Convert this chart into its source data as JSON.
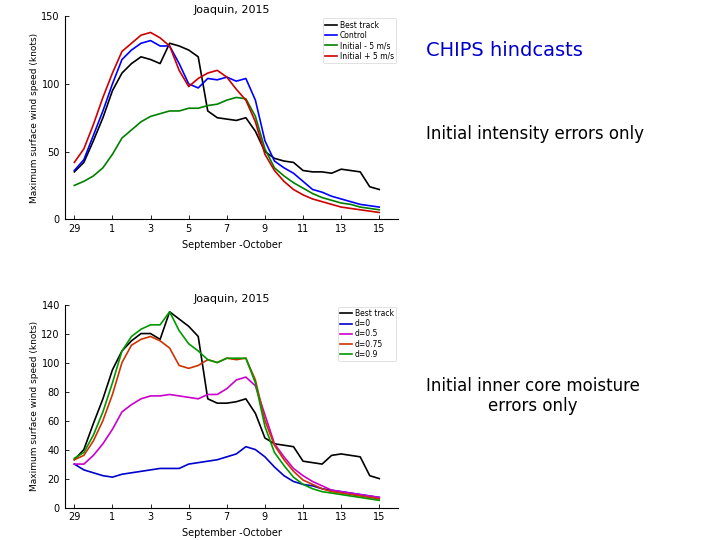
{
  "title1": "Joaquin, 2015",
  "title2": "Joaquin, 2015",
  "xlabel": "September -October",
  "ylabel": "Maximum surface wind speed (knots)",
  "xtick_positions": [
    0,
    2,
    4,
    6,
    8,
    10,
    12,
    14,
    16
  ],
  "xtick_labels": [
    "29",
    "1",
    "3",
    "5",
    "7",
    "9",
    "11",
    "13",
    "15"
  ],
  "xlim": [
    -0.5,
    17
  ],
  "ylim1": [
    0,
    150
  ],
  "ylim2": [
    0,
    140
  ],
  "yticks1": [
    0,
    50,
    100,
    150
  ],
  "yticks2": [
    0,
    20,
    40,
    60,
    80,
    100,
    120,
    140
  ],
  "chips_title": "CHIPS hindcasts",
  "label1": "Initial intensity errors only",
  "label2": "Initial inner core moisture\nerrors only",
  "background_color": "#ffffff",
  "plot1": {
    "best_track": {
      "color": "#000000",
      "label": "Best track",
      "x": [
        0,
        0.5,
        1,
        1.5,
        2,
        2.5,
        3,
        3.5,
        4,
        4.5,
        5,
        5.5,
        6,
        6.5,
        7,
        7.5,
        8,
        8.5,
        9,
        9.5,
        10,
        10.5,
        11,
        11.5,
        12,
        12.5,
        13,
        13.5,
        14,
        14.5,
        15,
        15.5,
        16
      ],
      "y": [
        35,
        42,
        58,
        75,
        95,
        108,
        115,
        120,
        118,
        115,
        130,
        128,
        125,
        120,
        80,
        75,
        74,
        73,
        75,
        65,
        50,
        45,
        43,
        42,
        36,
        35,
        35,
        34,
        37,
        36,
        35,
        24,
        22
      ]
    },
    "control": {
      "color": "#0000ff",
      "label": "Control",
      "x": [
        0,
        0.5,
        1,
        1.5,
        2,
        2.5,
        3,
        3.5,
        4,
        4.5,
        5,
        5.5,
        6,
        6.5,
        7,
        7.5,
        8,
        8.5,
        9,
        9.5,
        10,
        10.5,
        11,
        11.5,
        12,
        12.5,
        13,
        13.5,
        14,
        14.5,
        15,
        15.5,
        16
      ],
      "y": [
        36,
        44,
        62,
        80,
        100,
        118,
        125,
        130,
        132,
        128,
        128,
        115,
        100,
        97,
        104,
        103,
        105,
        102,
        104,
        88,
        58,
        43,
        38,
        34,
        28,
        22,
        20,
        17,
        15,
        13,
        11,
        10,
        9
      ]
    },
    "initial_minus": {
      "color": "#008000",
      "label": "Initial - 5 m/s",
      "x": [
        0,
        0.5,
        1,
        1.5,
        2,
        2.5,
        3,
        3.5,
        4,
        4.5,
        5,
        5.5,
        6,
        6.5,
        7,
        7.5,
        8,
        8.5,
        9,
        9.5,
        10,
        10.5,
        11,
        11.5,
        12,
        12.5,
        13,
        13.5,
        14,
        14.5,
        15,
        15.5,
        16
      ],
      "y": [
        25,
        28,
        32,
        38,
        48,
        60,
        66,
        72,
        76,
        78,
        80,
        80,
        82,
        82,
        84,
        85,
        88,
        90,
        89,
        76,
        52,
        38,
        32,
        27,
        23,
        19,
        16,
        14,
        12,
        11,
        9,
        8,
        7
      ]
    },
    "initial_plus": {
      "color": "#cc0000",
      "label": "Initial + 5 m/s",
      "x": [
        0,
        0.5,
        1,
        1.5,
        2,
        2.5,
        3,
        3.5,
        4,
        4.5,
        5,
        5.5,
        6,
        6.5,
        7,
        7.5,
        8,
        8.5,
        9,
        9.5,
        10,
        10.5,
        11,
        11.5,
        12,
        12.5,
        13,
        13.5,
        14,
        14.5,
        15,
        15.5,
        16
      ],
      "y": [
        42,
        52,
        70,
        90,
        108,
        124,
        130,
        136,
        138,
        134,
        128,
        110,
        98,
        104,
        108,
        110,
        105,
        96,
        88,
        72,
        48,
        36,
        28,
        22,
        18,
        15,
        13,
        11,
        9,
        8,
        7,
        6,
        5
      ]
    }
  },
  "plot2": {
    "best_track": {
      "color": "#000000",
      "label": "Best track",
      "x": [
        0,
        0.5,
        1,
        1.5,
        2,
        2.5,
        3,
        3.5,
        4,
        4.5,
        5,
        5.5,
        6,
        6.5,
        7,
        7.5,
        8,
        8.5,
        9,
        9.5,
        10,
        10.5,
        11,
        11.5,
        12,
        12.5,
        13,
        13.5,
        14,
        14.5,
        15,
        15.5,
        16
      ],
      "y": [
        33,
        40,
        58,
        75,
        95,
        108,
        115,
        120,
        120,
        116,
        135,
        130,
        125,
        118,
        75,
        72,
        72,
        73,
        75,
        65,
        48,
        44,
        43,
        42,
        32,
        31,
        30,
        36,
        37,
        36,
        35,
        22,
        20
      ]
    },
    "d0": {
      "color": "#0000cc",
      "label": "d=0",
      "x": [
        0,
        0.5,
        1,
        1.5,
        2,
        2.5,
        3,
        3.5,
        4,
        4.5,
        5,
        5.5,
        6,
        6.5,
        7,
        7.5,
        8,
        8.5,
        9,
        9.5,
        10,
        10.5,
        11,
        11.5,
        12,
        12.5,
        13,
        13.5,
        14,
        14.5,
        15,
        15.5,
        16
      ],
      "y": [
        30,
        26,
        24,
        22,
        21,
        23,
        24,
        25,
        26,
        27,
        27,
        27,
        30,
        31,
        32,
        33,
        35,
        37,
        42,
        40,
        35,
        28,
        22,
        18,
        16,
        15,
        13,
        12,
        11,
        10,
        9,
        8,
        7
      ]
    },
    "d05": {
      "color": "#cc00cc",
      "label": "d=0.5",
      "x": [
        0,
        0.5,
        1,
        1.5,
        2,
        2.5,
        3,
        3.5,
        4,
        4.5,
        5,
        5.5,
        6,
        6.5,
        7,
        7.5,
        8,
        8.5,
        9,
        9.5,
        10,
        10.5,
        11,
        11.5,
        12,
        12.5,
        13,
        13.5,
        14,
        14.5,
        15,
        15.5,
        16
      ],
      "y": [
        30,
        30,
        36,
        44,
        54,
        66,
        71,
        75,
        77,
        77,
        78,
        77,
        76,
        75,
        78,
        78,
        82,
        88,
        90,
        84,
        64,
        44,
        35,
        27,
        22,
        18,
        15,
        12,
        11,
        10,
        9,
        8,
        7
      ]
    },
    "d075": {
      "color": "#cc3300",
      "label": "d=0.75",
      "x": [
        0,
        0.5,
        1,
        1.5,
        2,
        2.5,
        3,
        3.5,
        4,
        4.5,
        5,
        5.5,
        6,
        6.5,
        7,
        7.5,
        8,
        8.5,
        9,
        9.5,
        10,
        10.5,
        11,
        11.5,
        12,
        12.5,
        13,
        13.5,
        14,
        14.5,
        15,
        15.5,
        16
      ],
      "y": [
        33,
        36,
        46,
        60,
        78,
        100,
        112,
        116,
        118,
        115,
        110,
        98,
        96,
        98,
        102,
        100,
        103,
        102,
        103,
        88,
        60,
        43,
        33,
        25,
        19,
        16,
        13,
        11,
        10,
        9,
        8,
        7,
        6
      ]
    },
    "d09": {
      "color": "#009900",
      "label": "d=0.9",
      "x": [
        0,
        0.5,
        1,
        1.5,
        2,
        2.5,
        3,
        3.5,
        4,
        4.5,
        5,
        5.5,
        6,
        6.5,
        7,
        7.5,
        8,
        8.5,
        9,
        9.5,
        10,
        10.5,
        11,
        11.5,
        12,
        12.5,
        13,
        13.5,
        14,
        14.5,
        15,
        15.5,
        16
      ],
      "y": [
        34,
        38,
        50,
        66,
        86,
        108,
        118,
        123,
        126,
        126,
        135,
        122,
        113,
        108,
        102,
        100,
        103,
        103,
        103,
        86,
        56,
        38,
        29,
        21,
        16,
        13,
        11,
        10,
        9,
        8,
        7,
        6,
        5
      ]
    }
  }
}
